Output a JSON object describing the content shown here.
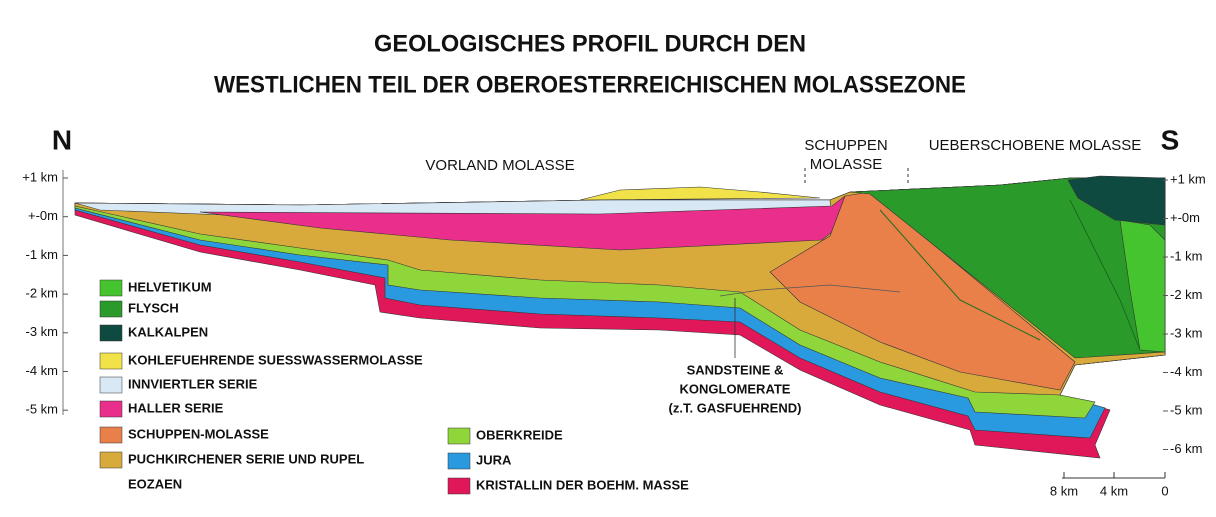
{
  "title": [
    "GEOLOGISCHES PROFIL DURCH DEN",
    "WESTLICHEN TEIL DER OBEROESTERREICHISCHEN MOLASSEZONE"
  ],
  "directions": {
    "north": "N",
    "south": "S"
  },
  "regions": [
    {
      "lines": [
        "VORLAND  MOLASSE"
      ]
    },
    {
      "lines": [
        "SCHUPPEN",
        "MOLASSE"
      ]
    },
    {
      "lines": [
        "UEBERSCHOBENE MOLASSE"
      ]
    }
  ],
  "annotation": [
    "SANDSTEINE &",
    "KONGLOMERATE",
    "(z.T. GASFUEHREND)"
  ],
  "depth_axis": {
    "left": [
      "+1 km",
      "+-0m",
      "-1 km",
      "-2 km",
      "-3 km",
      "-4 km",
      "-5 km"
    ],
    "right": [
      "+1 km",
      "+-0m",
      "-1 km",
      "-2 km",
      "-3 km",
      "-4 km",
      "-5 km",
      "-6 km"
    ]
  },
  "scale_bar": [
    "8 km",
    "4 km",
    "0"
  ],
  "legend": [
    {
      "label": "HELVETIKUM",
      "color": "#46c430"
    },
    {
      "label": "FLYSCH",
      "color": "#2a9a2a"
    },
    {
      "label": "KALKALPEN",
      "color": "#0f4a40"
    },
    {
      "label": "KOHLEFUEHRENDE SUESSWASSERMOLASSE",
      "color": "#f2e24a"
    },
    {
      "label": "INNVIERTLER SERIE",
      "color": "#d8e8f4"
    },
    {
      "label": "HALLER SERIE",
      "color": "#ea2e8c"
    },
    {
      "label": "SCHUPPEN-MOLASSE",
      "color": "#e9804a"
    },
    {
      "label": "PUCHKIRCHENER SERIE UND RUPEL",
      "color": "#d8aa3c"
    },
    {
      "label": "EOZAEN"
    },
    {
      "label": "OBERKREIDE",
      "color": "#8ed63a"
    },
    {
      "label": "JURA",
      "color": "#2a9ae0"
    },
    {
      "label": "KRISTALLIN DER BOEHM. MASSE",
      "color": "#e0185a"
    }
  ]
}
